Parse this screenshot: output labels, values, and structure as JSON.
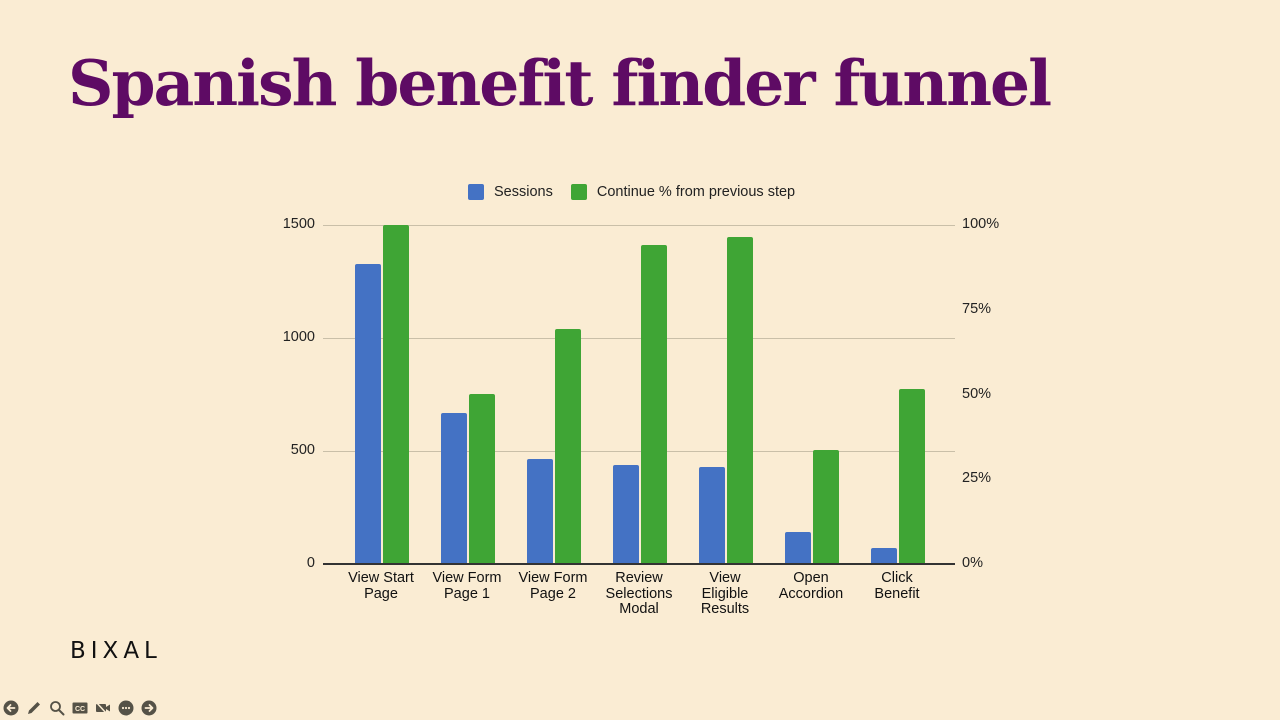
{
  "slide": {
    "title": "Spanish benefit finder funnel",
    "logo": "BIXAL",
    "background": "#faecd3",
    "title_color": "#5e0b64"
  },
  "player_controls": [
    {
      "name": "previous-slide",
      "icon": "arrow-left-circle-icon"
    },
    {
      "name": "pen-tool",
      "icon": "pencil-icon"
    },
    {
      "name": "zoom",
      "icon": "magnifier-icon"
    },
    {
      "name": "captions",
      "icon": "cc-icon"
    },
    {
      "name": "video-off",
      "icon": "video-off-icon"
    },
    {
      "name": "more-options",
      "icon": "ellipsis-circle-icon"
    },
    {
      "name": "next-slide",
      "icon": "arrow-right-circle-icon"
    }
  ],
  "chart_data": {
    "type": "bar",
    "title": "",
    "legend_position": "top",
    "grid": true,
    "categories": [
      "View Start Page",
      "View Form Page 1",
      "View Form Page 2",
      "Review Selections Modal",
      "View Eligible Results",
      "Open Accordion",
      "Click Benefit"
    ],
    "category_labels": [
      "View Start\nPage",
      "View Form\nPage 1",
      "View Form\nPage 2",
      "Review\nSelections\nModal",
      "View\nEligible\nResults",
      "Open\nAccordion",
      "Click\nBenefit"
    ],
    "series": [
      {
        "name": "Sessions",
        "axis": "left",
        "color": "#4472c4",
        "values": [
          1327,
          668,
          465,
          438,
          430,
          142,
          71
        ]
      },
      {
        "name": "Continue % from previous step",
        "axis": "right",
        "color": "#3fa535",
        "values": [
          100,
          50.1,
          69.3,
          94.1,
          96.5,
          33.6,
          51.6
        ]
      }
    ],
    "y_left": {
      "label": "",
      "ylim": [
        0,
        1500
      ],
      "ticks": [
        "0",
        "500",
        "1000",
        "1500"
      ]
    },
    "y_right": {
      "label": "",
      "ylim": [
        0,
        100
      ],
      "ticks": [
        "0%",
        "25%",
        "50%",
        "75%",
        "100%"
      ]
    },
    "xlabel": ""
  }
}
